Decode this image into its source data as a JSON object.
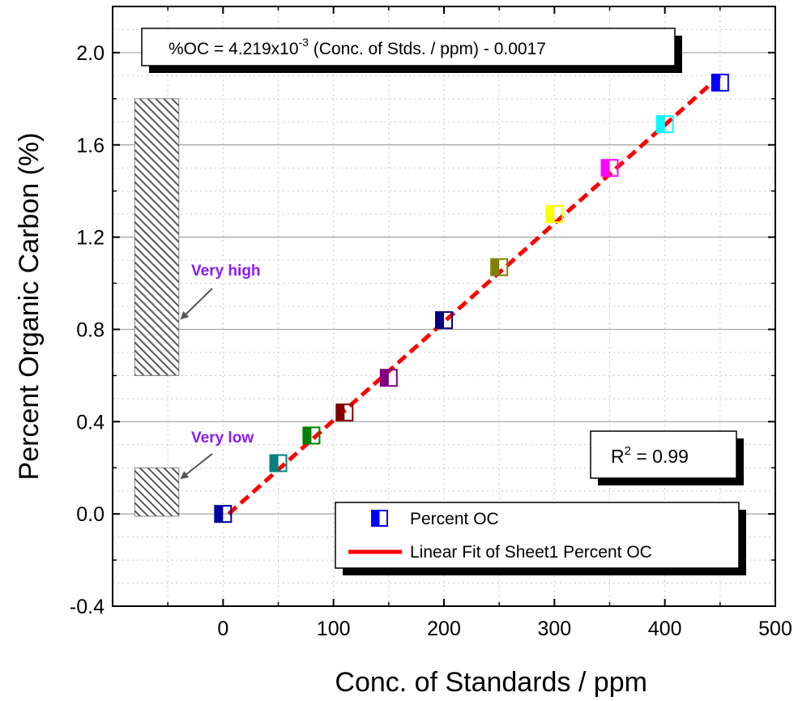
{
  "chart_data": {
    "type": "scatter",
    "xlabel": "Conc. of Standards / ppm",
    "ylabel": "Percent Organic Carbon (%)",
    "xlim": [
      -100,
      500
    ],
    "ylim": [
      -0.4,
      2.2
    ],
    "xticks": [
      0,
      100,
      200,
      300,
      400,
      500
    ],
    "xtick_labels": [
      "0",
      "100",
      "200",
      "300",
      "400",
      "500"
    ],
    "yticks": [
      -0.4,
      0.0,
      0.4,
      0.8,
      1.2,
      1.6,
      2.0
    ],
    "ytick_labels": [
      "-0.4",
      "0.0",
      "0.4",
      "0.8",
      "1.2",
      "1.6",
      "2.0"
    ],
    "grid": "horizontal major",
    "series": [
      {
        "name": "Percent OC",
        "marker": "half-filled square",
        "points": [
          {
            "x": 0,
            "y": 0.0,
            "color": "#0000a0"
          },
          {
            "x": 50,
            "y": 0.22,
            "color": "#008080"
          },
          {
            "x": 80,
            "y": 0.34,
            "color": "#008000"
          },
          {
            "x": 110,
            "y": 0.44,
            "color": "#800000"
          },
          {
            "x": 150,
            "y": 0.59,
            "color": "#800080"
          },
          {
            "x": 200,
            "y": 0.84,
            "color": "#000080"
          },
          {
            "x": 250,
            "y": 1.07,
            "color": "#808000"
          },
          {
            "x": 300,
            "y": 1.3,
            "color": "#ffff00"
          },
          {
            "x": 350,
            "y": 1.5,
            "color": "#ff00ff"
          },
          {
            "x": 400,
            "y": 1.69,
            "color": "#00ffff"
          },
          {
            "x": 450,
            "y": 1.87,
            "color": "#0000ff"
          }
        ]
      },
      {
        "name": "Linear Fit of Sheet1 Percent OC",
        "type": "line",
        "style": "dashed",
        "color": "#ff0000",
        "x": [
          5,
          450
        ],
        "y": [
          0.0,
          1.9
        ]
      }
    ],
    "shaded_regions": [
      {
        "x_range": [
          -80,
          -40
        ],
        "y_range": [
          0.6,
          1.8
        ],
        "label": "Very high",
        "color": "#555555"
      },
      {
        "x_range": [
          -80,
          -40
        ],
        "y_range": [
          -0.01,
          0.2
        ],
        "label": "Very low",
        "color": "#555555"
      }
    ],
    "equation_box": {
      "prefix": "%OC = 4.219x10",
      "exponent": "-3",
      "suffix": " (Conc. of Stds. / ppm) - 0.0017"
    },
    "r2_box": {
      "prefix": "R",
      "exponent": "2",
      "suffix": " = 0.99"
    },
    "legend": {
      "placement": "bottom-right",
      "entries": [
        "Percent OC",
        "Linear Fit of Sheet1 Percent OC"
      ]
    }
  }
}
